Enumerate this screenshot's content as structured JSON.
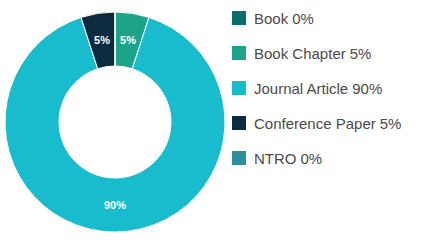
{
  "chart_data": {
    "type": "pie",
    "categories": [
      "Book",
      "Book Chapter",
      "Journal Article",
      "Conference Paper",
      "NTRO"
    ],
    "values": [
      0,
      5,
      90,
      5,
      0
    ],
    "value_labels": [
      "0%",
      "5%",
      "90%",
      "5%",
      "0%"
    ],
    "colors": [
      "#0b6e6e",
      "#1da38a",
      "#19bccd",
      "#0d2b3e",
      "#2e8ea0"
    ],
    "data_labels": true,
    "legend": "right"
  }
}
